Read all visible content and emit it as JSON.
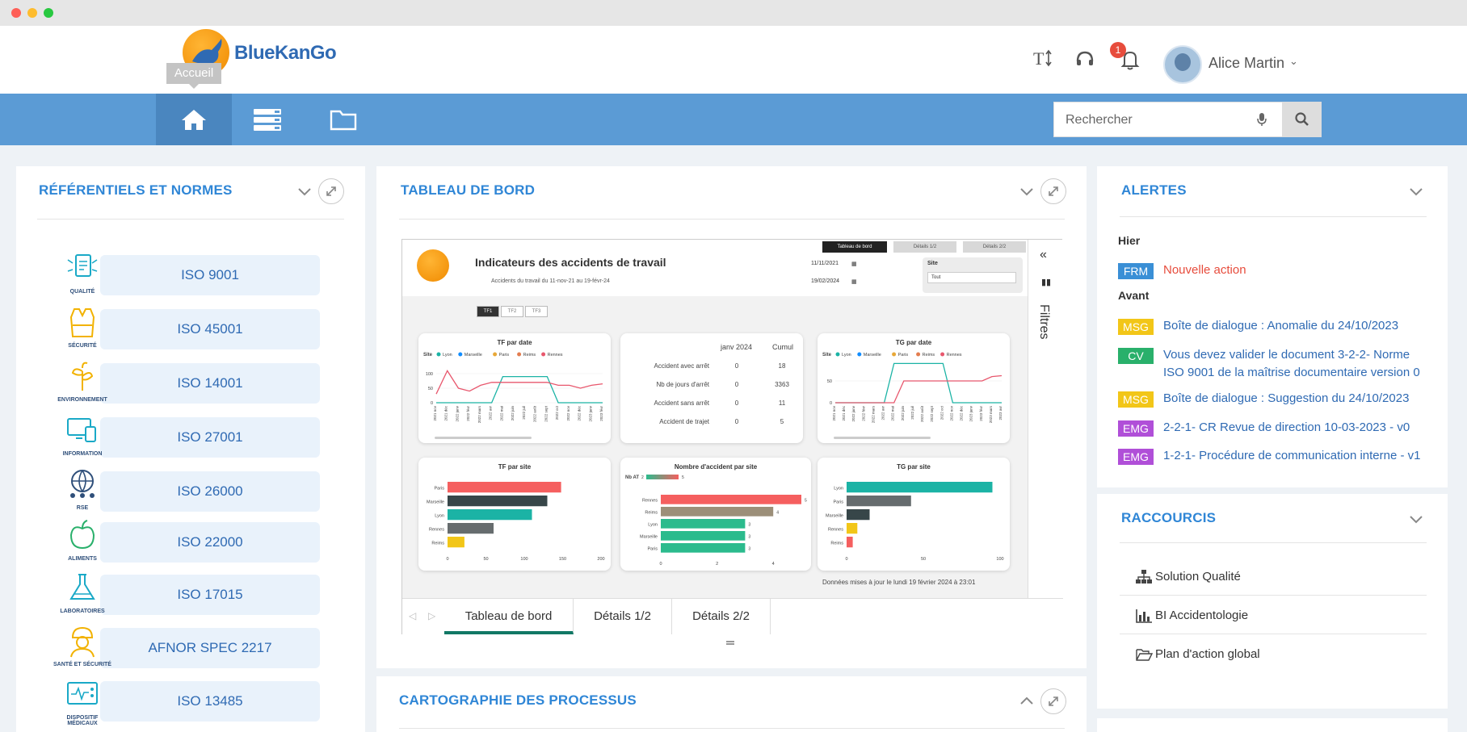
{
  "header": {
    "brand": "BlueKanGo",
    "home_tooltip": "Accueil",
    "notification_count": "1",
    "user_name": "Alice Martin"
  },
  "search": {
    "placeholder": "Rechercher"
  },
  "colors": {
    "nav_blue": "#5b9bd5",
    "title_blue": "#2f86d6",
    "link_blue": "#2f6ab3",
    "tag_frm": "#3a8fd6",
    "tag_msg": "#f2c618",
    "tag_cv": "#29b06b",
    "tag_emg": "#b04fd8",
    "alert_red": "#e74c3c"
  },
  "referentiels": {
    "title": "RÉFÉRENTIELS ET NORMES",
    "items": [
      {
        "label": "ISO 9001",
        "caption": "QUALITÉ",
        "icon": "quality-icon"
      },
      {
        "label": "ISO 45001",
        "caption": "SÉCURITÉ",
        "icon": "safety-vest-icon"
      },
      {
        "label": "ISO 14001",
        "caption": "ENVIRONNEMENT",
        "icon": "plant-icon"
      },
      {
        "label": "ISO 27001",
        "caption": "INFORMATION",
        "icon": "devices-icon"
      },
      {
        "label": "ISO 26000",
        "caption": "RSE",
        "icon": "globe-people-icon"
      },
      {
        "label": "ISO 22000",
        "caption": "ALIMENTS",
        "icon": "apple-icon"
      },
      {
        "label": "ISO 17015",
        "caption": "LABORATOIRES",
        "icon": "flask-icon"
      },
      {
        "label": "AFNOR SPEC 2217",
        "caption": "SANTÉ ET SÉCURITÉ",
        "icon": "worker-icon"
      },
      {
        "label": "ISO 13485",
        "caption": "DISPOSITIF MÉDICAUX",
        "icon": "monitor-icon"
      }
    ]
  },
  "tableau": {
    "title": "TABLEAU DE BORD",
    "report_title": "Indicateurs des accidents de travail",
    "report_subtitle": "Accidents du travail du 11-nov-21 au 19-févr-24",
    "report_tabs": [
      "Tableau de bord",
      "Détails 1/2",
      "Détails 2/2"
    ],
    "date_from": "11/11/2021",
    "date_to": "19/02/2024",
    "site_label": "Site",
    "site_value": "Tout",
    "tf_buttons": [
      "TF1",
      "TF2",
      "TF3"
    ],
    "filters_label": "Filtres",
    "updated_text": "Données mises à jour le lundi 19 février 2024 à 23:01",
    "bottom_tabs": [
      "Tableau de bord",
      "Détails 1/2",
      "Détails 2/2"
    ],
    "table": {
      "col1": "janv 2024",
      "col2": "Cumul",
      "rows": [
        {
          "label": "Accident avec arrêt",
          "v1": "0",
          "v2": "18"
        },
        {
          "label": "Nb de jours d'arrêt",
          "v1": "0",
          "v2": "3363"
        },
        {
          "label": "Accident sans arrêt",
          "v1": "0",
          "v2": "11"
        },
        {
          "label": "Accident de trajet",
          "v1": "0",
          "v2": "5"
        }
      ]
    }
  },
  "cartographie": {
    "title": "CARTOGRAPHIE DES PROCESSUS"
  },
  "alertes": {
    "title": "ALERTES",
    "group_hier": "Hier",
    "group_avant": "Avant",
    "hier": [
      {
        "tag": "FRM",
        "text": "Nouvelle action",
        "tagcolor": "#3a8fd6",
        "textcolor": "#e74c3c"
      }
    ],
    "avant": [
      {
        "tag": "MSG",
        "text": "Boîte de dialogue : Anomalie du 24/10/2023",
        "tagcolor": "#f2c618"
      },
      {
        "tag": "CV",
        "text": "Vous devez valider le document 3-2-2- Norme",
        "text2": "ISO 9001 de la maîtrise documentaire version 0",
        "tagcolor": "#29b06b"
      },
      {
        "tag": "MSG",
        "text": "Boîte de dialogue : Suggestion du 24/10/2023",
        "tagcolor": "#f2c618"
      },
      {
        "tag": "EMG",
        "text": "2-2-1- CR Revue de direction 10-03-2023 - v0",
        "tagcolor": "#b04fd8"
      },
      {
        "tag": "EMG",
        "text": "1-2-1- Procédure de communication interne - v1",
        "tagcolor": "#b04fd8"
      }
    ]
  },
  "raccourcis": {
    "title": "RACCOURCIS",
    "items": [
      {
        "label": "Solution Qualité",
        "icon": "org-chart-icon"
      },
      {
        "label": "BI Accidentologie",
        "icon": "bar-chart-icon"
      },
      {
        "label": "Plan d'action global",
        "icon": "folder-open-icon"
      }
    ]
  },
  "chart_data": [
    {
      "type": "line",
      "title": "TF par date",
      "legend_title": "Site",
      "legend": [
        "Lyon",
        "Marseille",
        "Paris",
        "Reims",
        "Rennes"
      ],
      "ylim": [
        0,
        150
      ],
      "yticks": [
        0,
        50,
        100
      ],
      "categories": [
        "2021 nov",
        "2021 déc",
        "2022 janv",
        "2022 févr",
        "2022 mars",
        "2022 avr",
        "2022 mai",
        "2022 juin",
        "2022 juil",
        "2022 août",
        "2022 sept",
        "2022 oct",
        "2022 nov",
        "2022 déc",
        "2023 janv",
        "2023 févr"
      ],
      "series": [
        {
          "name": "Lyon",
          "color": "#1bb3a5",
          "values": [
            0,
            0,
            0,
            0,
            0,
            0,
            90,
            90,
            90,
            90,
            90,
            0,
            0,
            0,
            0,
            0
          ]
        },
        {
          "name": "Rennes",
          "color": "#e8576d",
          "values": [
            30,
            110,
            50,
            40,
            60,
            70,
            70,
            70,
            70,
            70,
            70,
            60,
            60,
            50,
            60,
            65
          ]
        }
      ]
    },
    {
      "type": "line",
      "title": "TG par date",
      "legend_title": "Site",
      "legend": [
        "Lyon",
        "Marseille",
        "Paris",
        "Reims",
        "Rennes"
      ],
      "ylim": [
        0,
        100
      ],
      "yticks": [
        0,
        50
      ],
      "categories": [
        "2021 nov",
        "2021 déc",
        "2022 janv",
        "2022 févr",
        "2022 mars",
        "2022 avr",
        "2022 mai",
        "2022 juin",
        "2022 juil",
        "2022 août",
        "2022 sept",
        "2022 oct",
        "2022 nov",
        "2022 déc",
        "2023 janv",
        "2023 févr",
        "2023 mars",
        "2023 avr"
      ],
      "series": [
        {
          "name": "Lyon",
          "color": "#1bb3a5",
          "values": [
            0,
            0,
            0,
            0,
            0,
            0,
            90,
            90,
            90,
            90,
            90,
            90,
            0,
            0,
            0,
            0,
            0,
            0
          ]
        },
        {
          "name": "Rennes",
          "color": "#e8576d",
          "values": [
            0,
            0,
            0,
            0,
            0,
            0,
            0,
            50,
            50,
            50,
            50,
            50,
            50,
            50,
            50,
            50,
            60,
            62
          ]
        }
      ]
    },
    {
      "type": "bar",
      "title": "TF par site",
      "categories": [
        "Paris",
        "Marseille",
        "Lyon",
        "Rennes",
        "Reims"
      ],
      "values": [
        148,
        130,
        110,
        60,
        22
      ],
      "colors": [
        "#f55f5f",
        "#374649",
        "#1bb3a5",
        "#666c6e",
        "#f2c618"
      ],
      "xlim": [
        0,
        200
      ],
      "xticks": [
        0,
        50,
        100,
        150,
        200
      ]
    },
    {
      "type": "bar",
      "title": "Nombre d'accident par site",
      "legend_title": "Nb AT",
      "legend_range": [
        "2",
        "5"
      ],
      "categories": [
        "Rennes",
        "Reims",
        "Lyon",
        "Marseille",
        "Paris"
      ],
      "values": [
        5,
        4,
        3,
        3,
        3
      ],
      "colors": [
        "#f55f5f",
        "#9c8f79",
        "#2bbb8d",
        "#2bbb8d",
        "#2bbb8d"
      ],
      "xlim": [
        0,
        5
      ],
      "xticks": [
        0,
        2,
        4
      ]
    },
    {
      "type": "bar",
      "title": "TG par site",
      "categories": [
        "Lyon",
        "Paris",
        "Marseille",
        "Rennes",
        "Reims"
      ],
      "values": [
        95,
        42,
        15,
        7,
        4
      ],
      "colors": [
        "#1bb3a5",
        "#666c6e",
        "#374649",
        "#f2c618",
        "#f55f5f"
      ],
      "xlim": [
        0,
        100
      ],
      "xticks": [
        0,
        50,
        100
      ]
    }
  ]
}
